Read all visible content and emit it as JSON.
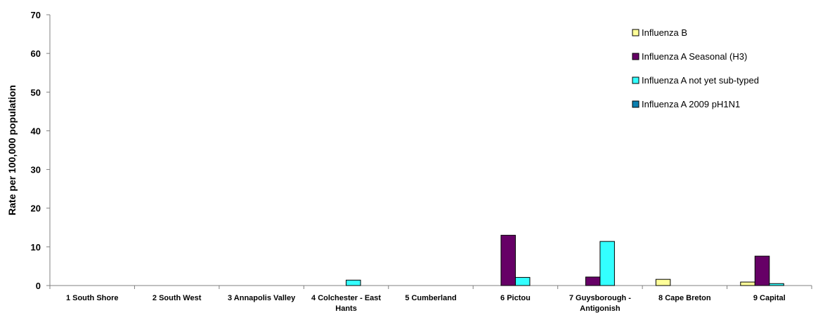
{
  "chart_data": {
    "type": "bar",
    "title": "",
    "xlabel": "",
    "ylabel": "Rate per 100,000 population",
    "ylim": [
      0,
      70
    ],
    "yticks": [
      0,
      10,
      20,
      30,
      40,
      50,
      60,
      70
    ],
    "grid": false,
    "legend_position": "top-right",
    "categories": [
      [
        "1 South Shore"
      ],
      [
        "2 South West"
      ],
      [
        "3 Annapolis Valley"
      ],
      [
        "4 Colchester - East",
        "Hants"
      ],
      [
        "5 Cumberland"
      ],
      [
        "6 Pictou"
      ],
      [
        "7 Guysborough -",
        "Antigonish"
      ],
      [
        "8 Cape Breton"
      ],
      [
        "9 Capital"
      ]
    ],
    "series": [
      {
        "name": "Influenza B",
        "color": "#ffff99",
        "values": [
          0,
          0,
          0,
          0,
          0,
          0,
          0,
          1.6,
          0.9
        ]
      },
      {
        "name": "Influenza A Seasonal (H3)",
        "color": "#660066",
        "values": [
          0,
          0,
          0,
          0,
          0,
          13.0,
          2.2,
          0,
          7.6
        ]
      },
      {
        "name": "Influenza A not yet sub-typed",
        "color": "#33ffff",
        "values": [
          0,
          0,
          0,
          1.4,
          0,
          2.1,
          11.4,
          0,
          0.5
        ]
      },
      {
        "name": "Influenza A 2009 pH1N1",
        "color": "#0b7fb0",
        "values": [
          0,
          0,
          0,
          0,
          0,
          0,
          0,
          0,
          0
        ]
      }
    ]
  }
}
